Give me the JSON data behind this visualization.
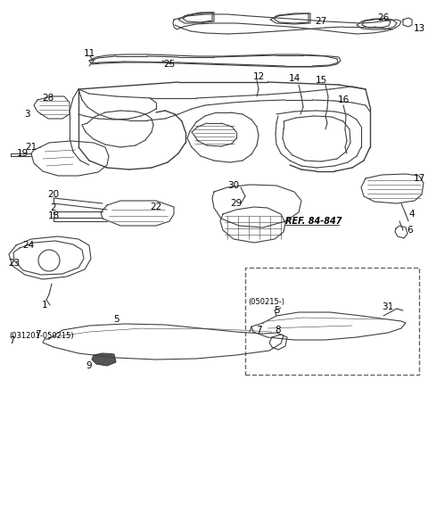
{
  "background_color": "#ffffff",
  "line_color": "#404040",
  "label_color": "#000000",
  "figsize": [
    4.8,
    5.84
  ],
  "dpi": 100,
  "ref_text": "REF. 84-847",
  "date_range1": "(031201-050215)",
  "date_range2": "(050215-)"
}
